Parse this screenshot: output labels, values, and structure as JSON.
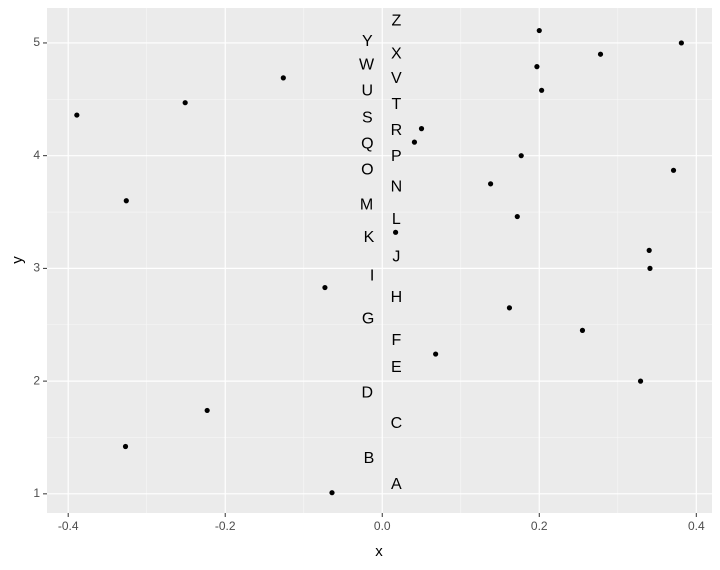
{
  "chart_data": {
    "type": "scatter",
    "x_label": "x",
    "y_label": "y",
    "xlim": [
      -0.427,
      0.42
    ],
    "ylim": [
      0.83,
      5.31
    ],
    "xticks": [
      -0.4,
      -0.2,
      {
        "value": 0,
        "label": "0.0"
      },
      0.2,
      0.4
    ],
    "yticks": [
      1,
      2,
      3,
      4,
      5
    ],
    "grid": true,
    "color": "#000000",
    "x": [
      -0.064,
      -0.327,
      -0.223,
      0.068,
      0.329,
      0.255,
      0.162,
      -0.073,
      0.341,
      0.34,
      0.017,
      0.172,
      -0.326,
      0.138,
      0.371,
      0.177,
      0.041,
      0.05,
      -0.389,
      -0.251,
      0.203,
      -0.126,
      0.197,
      0.278,
      0.2,
      0.381
    ],
    "y": [
      1.01,
      1.42,
      1.74,
      2.24,
      2.0,
      2.45,
      2.65,
      2.83,
      3.0,
      3.16,
      3.32,
      3.46,
      3.6,
      3.75,
      3.87,
      4.0,
      4.12,
      4.24,
      4.36,
      4.47,
      4.58,
      4.69,
      4.79,
      4.9,
      5.11,
      5.0
    ],
    "labels": {
      "text": [
        "A",
        "B",
        "C",
        "D",
        "E",
        "F",
        "G",
        "H",
        "I",
        "J",
        "K",
        "L",
        "M",
        "N",
        "O",
        "P",
        "Q",
        "R",
        "S",
        "T",
        "U",
        "V",
        "W",
        "X",
        "Y",
        "Z"
      ],
      "x": [
        0.018,
        -0.017,
        0.018,
        -0.019,
        0.018,
        0.018,
        -0.018,
        0.018,
        -0.013,
        0.018,
        -0.017,
        0.018,
        -0.02,
        0.018,
        -0.019,
        0.018,
        -0.019,
        0.018,
        -0.019,
        0.018,
        -0.019,
        0.018,
        -0.02,
        0.018,
        -0.019,
        0.018
      ],
      "y": [
        1.08,
        1.31,
        1.62,
        1.89,
        2.12,
        2.36,
        2.55,
        2.74,
        2.93,
        3.1,
        3.27,
        3.43,
        3.56,
        3.72,
        3.87,
        3.99,
        4.1,
        4.22,
        4.33,
        4.45,
        4.57,
        4.68,
        4.8,
        4.9,
        5.01,
        5.19
      ]
    }
  }
}
